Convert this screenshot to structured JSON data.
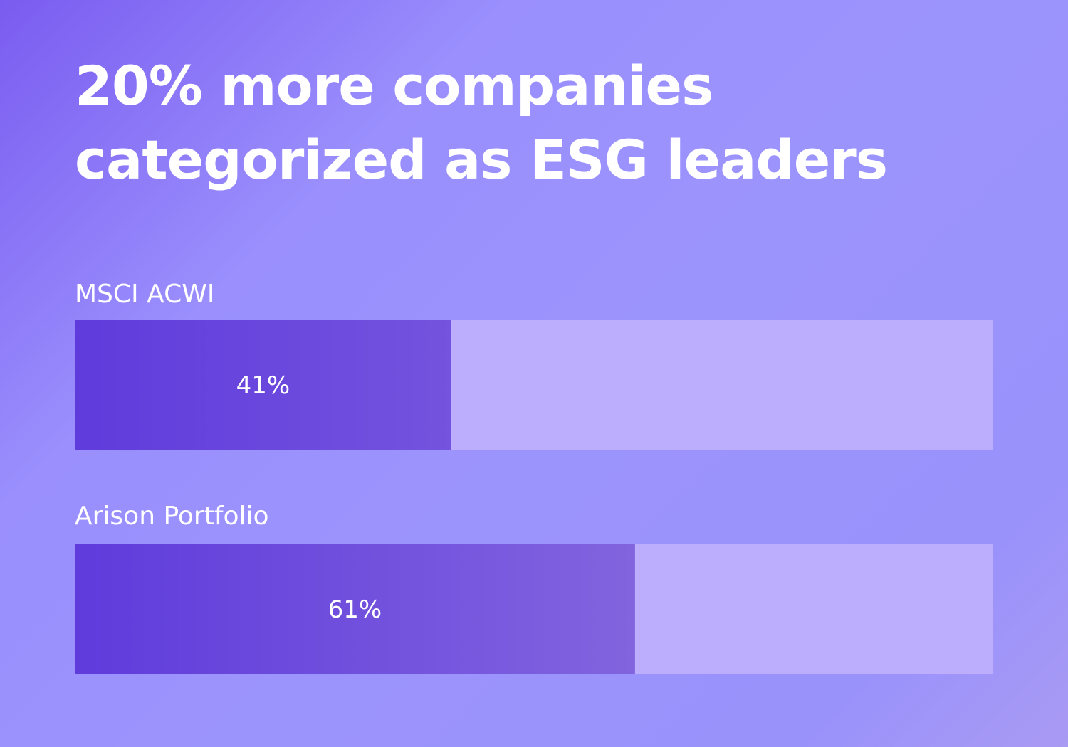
{
  "chart_data": {
    "type": "bar",
    "orientation": "horizontal",
    "title": [
      "20% more companies",
      "categorized as ESG leaders"
    ],
    "categories": [
      "MSCI ACWI",
      "Arison Portfolio"
    ],
    "values": [
      41,
      61
    ],
    "value_labels": [
      "41%",
      "61%"
    ],
    "xlim": [
      0,
      100
    ],
    "grid": false,
    "legend": "none"
  },
  "colors": {
    "bar_fill_start": "#5f3bdc",
    "bar_fill_end_1": "#7453de",
    "bar_fill_end_2": "#8264de",
    "track": "#bcaefc",
    "text": "#ffffff"
  }
}
